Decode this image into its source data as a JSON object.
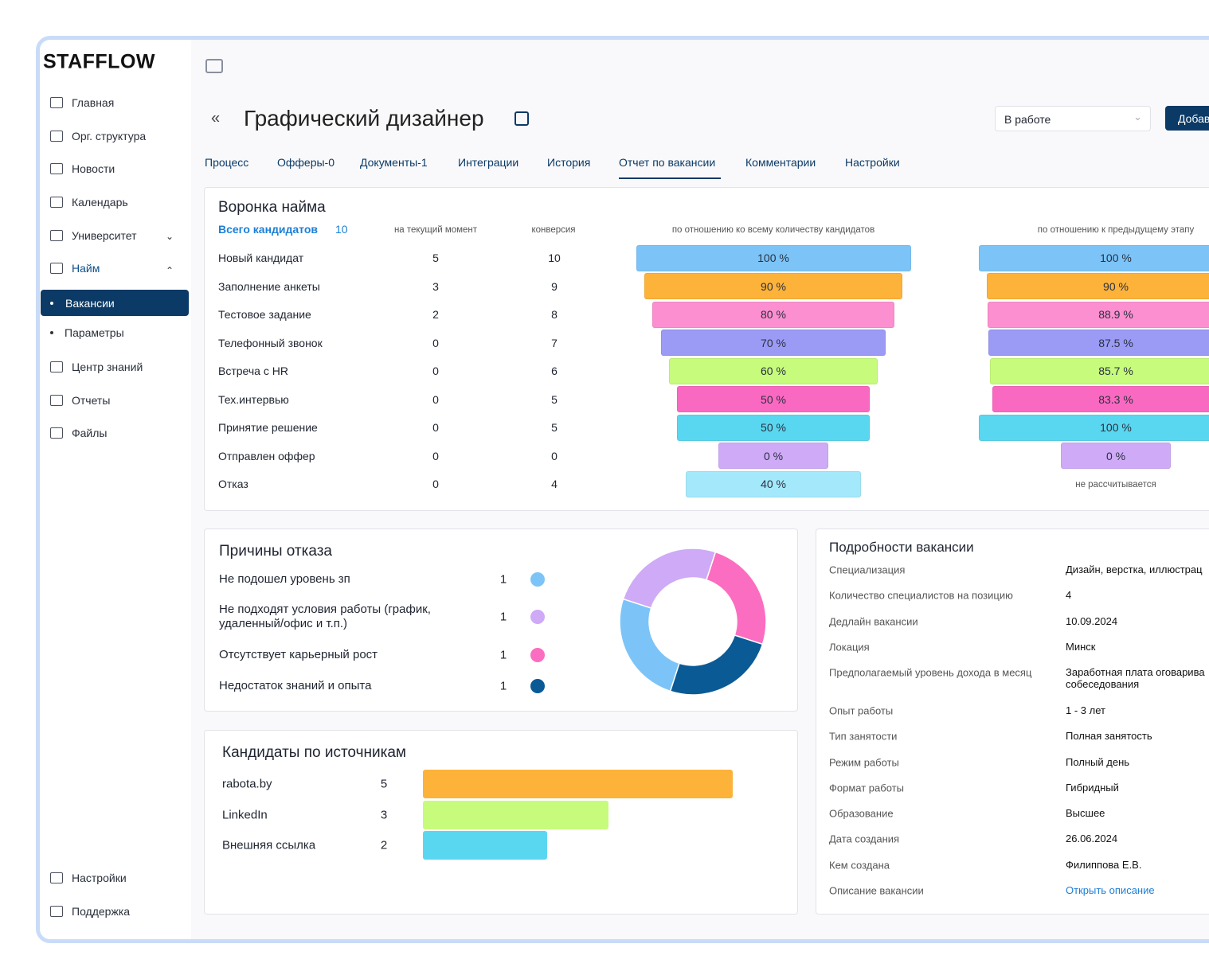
{
  "sidebar": {
    "logo": "STAFFLOW",
    "menu": [
      "Главная",
      "Орг. структура",
      "Новости",
      "Календарь",
      "Университет",
      "Найм"
    ],
    "submenu": [
      "Вакансии",
      "Параметры"
    ],
    "menu2": [
      "Центр знаний",
      "Отчеты",
      "Файлы"
    ],
    "bottom": [
      "Настройки",
      "Поддержка"
    ]
  },
  "header": {
    "title": "Графический дизайнер",
    "status": "В работе",
    "button": "Добав"
  },
  "tabs": [
    "Процесс",
    "Офферы-0",
    "Документы-1",
    "Интеграции",
    "История",
    "Отчет по вакансии",
    "Комментарии",
    "Настройки"
  ],
  "funnel": {
    "title": "Воронка найма",
    "total_label": "Всего кандидатов",
    "total": 10,
    "col_headers": [
      "на текущий момент",
      "конверсия",
      "по отношению ко всему количеству кандидатов",
      "по отношению к предыдущему этапу"
    ],
    "stages": [
      "Новый кандидат",
      "Заполнение анкеты",
      "Тестовое задание",
      "Телефонный звонок",
      "Встреча с HR",
      "Тех.интервью",
      "Принятие решение",
      "Отправлен оффер",
      "Отказ"
    ],
    "current": [
      5,
      3,
      2,
      0,
      0,
      0,
      0,
      0,
      0
    ],
    "conversion": [
      10,
      9,
      8,
      7,
      6,
      5,
      5,
      0,
      4
    ],
    "colors": [
      "#7cc4f8",
      "#fdb23a",
      "#fb8fcf",
      "#9b9bf5",
      "#c6fb7c",
      "#fa69c1",
      "#5ad7f0",
      "#cfaaf7",
      "#a3e9fb"
    ],
    "overall": {
      "values": [
        100,
        90,
        80,
        70,
        60,
        50,
        50,
        0,
        40
      ],
      "value_labels": [
        "100 %",
        "90 %",
        "80 %",
        "70 %",
        "60 %",
        "50 %",
        "50 %",
        "0 %",
        "40 %"
      ]
    },
    "previous": {
      "values": [
        100,
        90,
        88.9,
        87.5,
        85.7,
        83.3,
        100,
        0
      ],
      "value_labels": [
        "100 %",
        "90 %",
        "88.9 %",
        "87.5 %",
        "85.7 %",
        "83.3 %",
        "100 %",
        "0 %"
      ],
      "note": "не рассчитывается"
    }
  },
  "rejections": {
    "title": "Причины отказа",
    "labels": [
      "Не подошел уровень зп",
      "Не подходят условия работы (график, удаленный/офис и т.п.)",
      "Отсутствует карьерный рост",
      "Недостаток знаний и опыта"
    ],
    "values": [
      1,
      1,
      1,
      1
    ],
    "colors": [
      "#7cc4f8",
      "#cfaaf7",
      "#fb6dc0",
      "#0a5a96"
    ]
  },
  "sources": {
    "title": "Кандидаты по источникам",
    "labels": [
      "rabota.by",
      "LinkedIn",
      "Внешняя ссылка"
    ],
    "values": [
      5,
      3,
      2
    ],
    "colors": [
      "#fdb23a",
      "#c6fb7c",
      "#5ad7f0"
    ]
  },
  "details": {
    "title": "Подробности вакансии",
    "rows": [
      [
        "Специализация",
        "Дизайн, верстка, иллюстрац"
      ],
      [
        "Количество специалистов на позицию",
        "4"
      ],
      [
        "Дедлайн вакансии",
        "10.09.2024"
      ],
      [
        "Локация",
        "Минск"
      ],
      [
        "Предполагаемый уровень дохода в месяц",
        "Заработная плата оговарива собеседования"
      ],
      [
        "Опыт работы",
        "1 - 3 лет"
      ],
      [
        "Тип занятости",
        "Полная занятость"
      ],
      [
        "Режим работы",
        "Полный день"
      ],
      [
        "Формат работы",
        "Гибридный"
      ],
      [
        "Образование",
        "Высшее"
      ],
      [
        "Дата создания",
        "26.06.2024"
      ],
      [
        "Кем создана",
        "Филиппова Е.В."
      ],
      [
        "Описание вакансии",
        "Открыть описание"
      ]
    ]
  }
}
